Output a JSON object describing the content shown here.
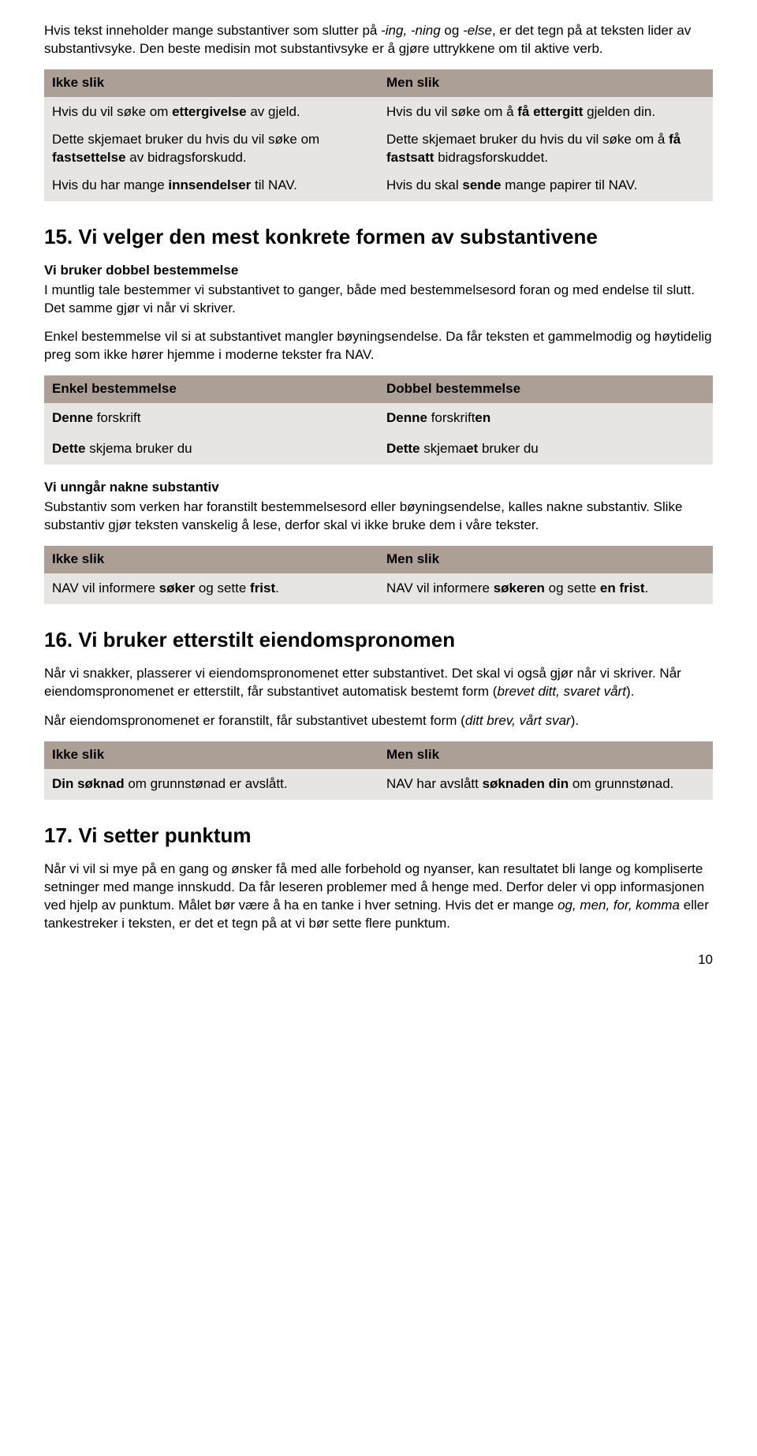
{
  "intro": {
    "p1a": "Hvis tekst inneholder mange substantiver som slutter på ",
    "p1b": "-ing, -ning",
    "p1c": " og ",
    "p1d": "-else",
    "p1e": ", er det tegn på at teksten lider av substantivsyke. Den beste medisin mot substantivsyke er å gjøre uttrykkene om til aktive verb."
  },
  "table1": {
    "h1": "Ikke slik",
    "h2": "Men slik",
    "l1a": "Hvis du vil søke om ",
    "l1b": "ettergivelse",
    "l1c": " av gjeld.",
    "l2a": "Dette skjemaet bruker du hvis du vil søke om ",
    "l2b": "fastsettelse",
    "l2c": " av bidragsforskudd.",
    "l3a": "Hvis du har mange ",
    "l3b": "innsendelser",
    "l3c": " til NAV.",
    "r1a": "Hvis du vil søke om å ",
    "r1b": "få ettergitt",
    "r1c": " gjelden din.",
    "r2a": "Dette skjemaet bruker du hvis du vil søke om å ",
    "r2b": "få fastsatt",
    "r2c": " bidragsforskuddet.",
    "r3a": "Hvis du skal ",
    "r3b": "sende",
    "r3c": " mange papirer til NAV."
  },
  "s15": {
    "title": "15.  Vi velger den mest konkrete formen av substantivene",
    "sub1": "Vi bruker dobbel bestemmelse",
    "p1": "I muntlig tale bestemmer vi substantivet to ganger, både med bestemmelsesord foran og med endelse til slutt. Det samme gjør vi når vi skriver.",
    "p2": "Enkel bestemmelse vil si at substantivet mangler bøyningsendelse. Da får teksten et gammelmodig og høytidelig preg som ikke hører hjemme i moderne tekster fra NAV."
  },
  "table2": {
    "h1": "Enkel bestemmelse",
    "h2": "Dobbel bestemmelse",
    "l1a": "Denne",
    "l1b": " forskrift",
    "l2a": "Dette",
    "l2b": " skjema bruker du",
    "r1a": "Denne",
    "r1b": " forskrift",
    "r1c": "en",
    "r2a": "Dette",
    "r2b": " skjema",
    "r2c": "et",
    "r2d": " bruker du"
  },
  "s15b": {
    "sub2": "Vi unngår nakne substantiv",
    "p3": "Substantiv som verken har foranstilt bestemmelsesord eller bøyningsendelse, kalles nakne substantiv. Slike substantiv gjør teksten vanskelig å lese, derfor skal vi ikke bruke dem i våre tekster."
  },
  "table3": {
    "h1": "Ikke slik",
    "h2": "Men slik",
    "l1a": "NAV vil informere ",
    "l1b": "søker",
    "l1c": " og sette ",
    "l1d": "frist",
    "l1e": ".",
    "r1a": "NAV vil informere ",
    "r1b": "søker",
    "r1c": "en",
    "r1d": " og sette ",
    "r1e": "en frist",
    "r1f": "."
  },
  "s16": {
    "title": "16.  Vi bruker etterstilt eiendomspronomen",
    "p1": "Når vi snakker, plasserer vi eiendomspronomenet etter substantivet. Det skal vi også gjør når vi skriver. Når eiendomspronomenet er etterstilt, får substantivet automatisk bestemt form (",
    "p1i": "brevet ditt, svaret vårt",
    "p1b": ").",
    "p2": "Når eiendomspronomenet er foranstilt, får substantivet ubestemt form (",
    "p2i": "ditt brev, vårt svar",
    "p2b": ")."
  },
  "table4": {
    "h1": "Ikke slik",
    "h2": "Men slik",
    "l1a": "Din søknad",
    "l1b": " om grunnstønad er avslått.",
    "r1a": "NAV har avslått ",
    "r1b": "søknaden din",
    "r1c": " om grunnstønad."
  },
  "s17": {
    "title": "17.  Vi setter punktum",
    "p1a": "Når vi vil si mye på en gang og ønsker få med alle forbehold og nyanser, kan resultatet bli lange og kompliserte setninger med mange innskudd. Da får leseren problemer med å henge med. Derfor deler vi opp informasjonen ved hjelp av punktum. Målet bør være å ha en tanke i hver setning. Hvis det er mange ",
    "p1b": "og, men, for, komma",
    "p1c": " eller tankestreker i teksten, er det et tegn på at vi bør sette flere punktum."
  },
  "pagenum": "10",
  "colors": {
    "header_bg": "#aca096",
    "cell_bg": "#e7e5e3",
    "text": "#000000",
    "page_bg": "#ffffff"
  }
}
